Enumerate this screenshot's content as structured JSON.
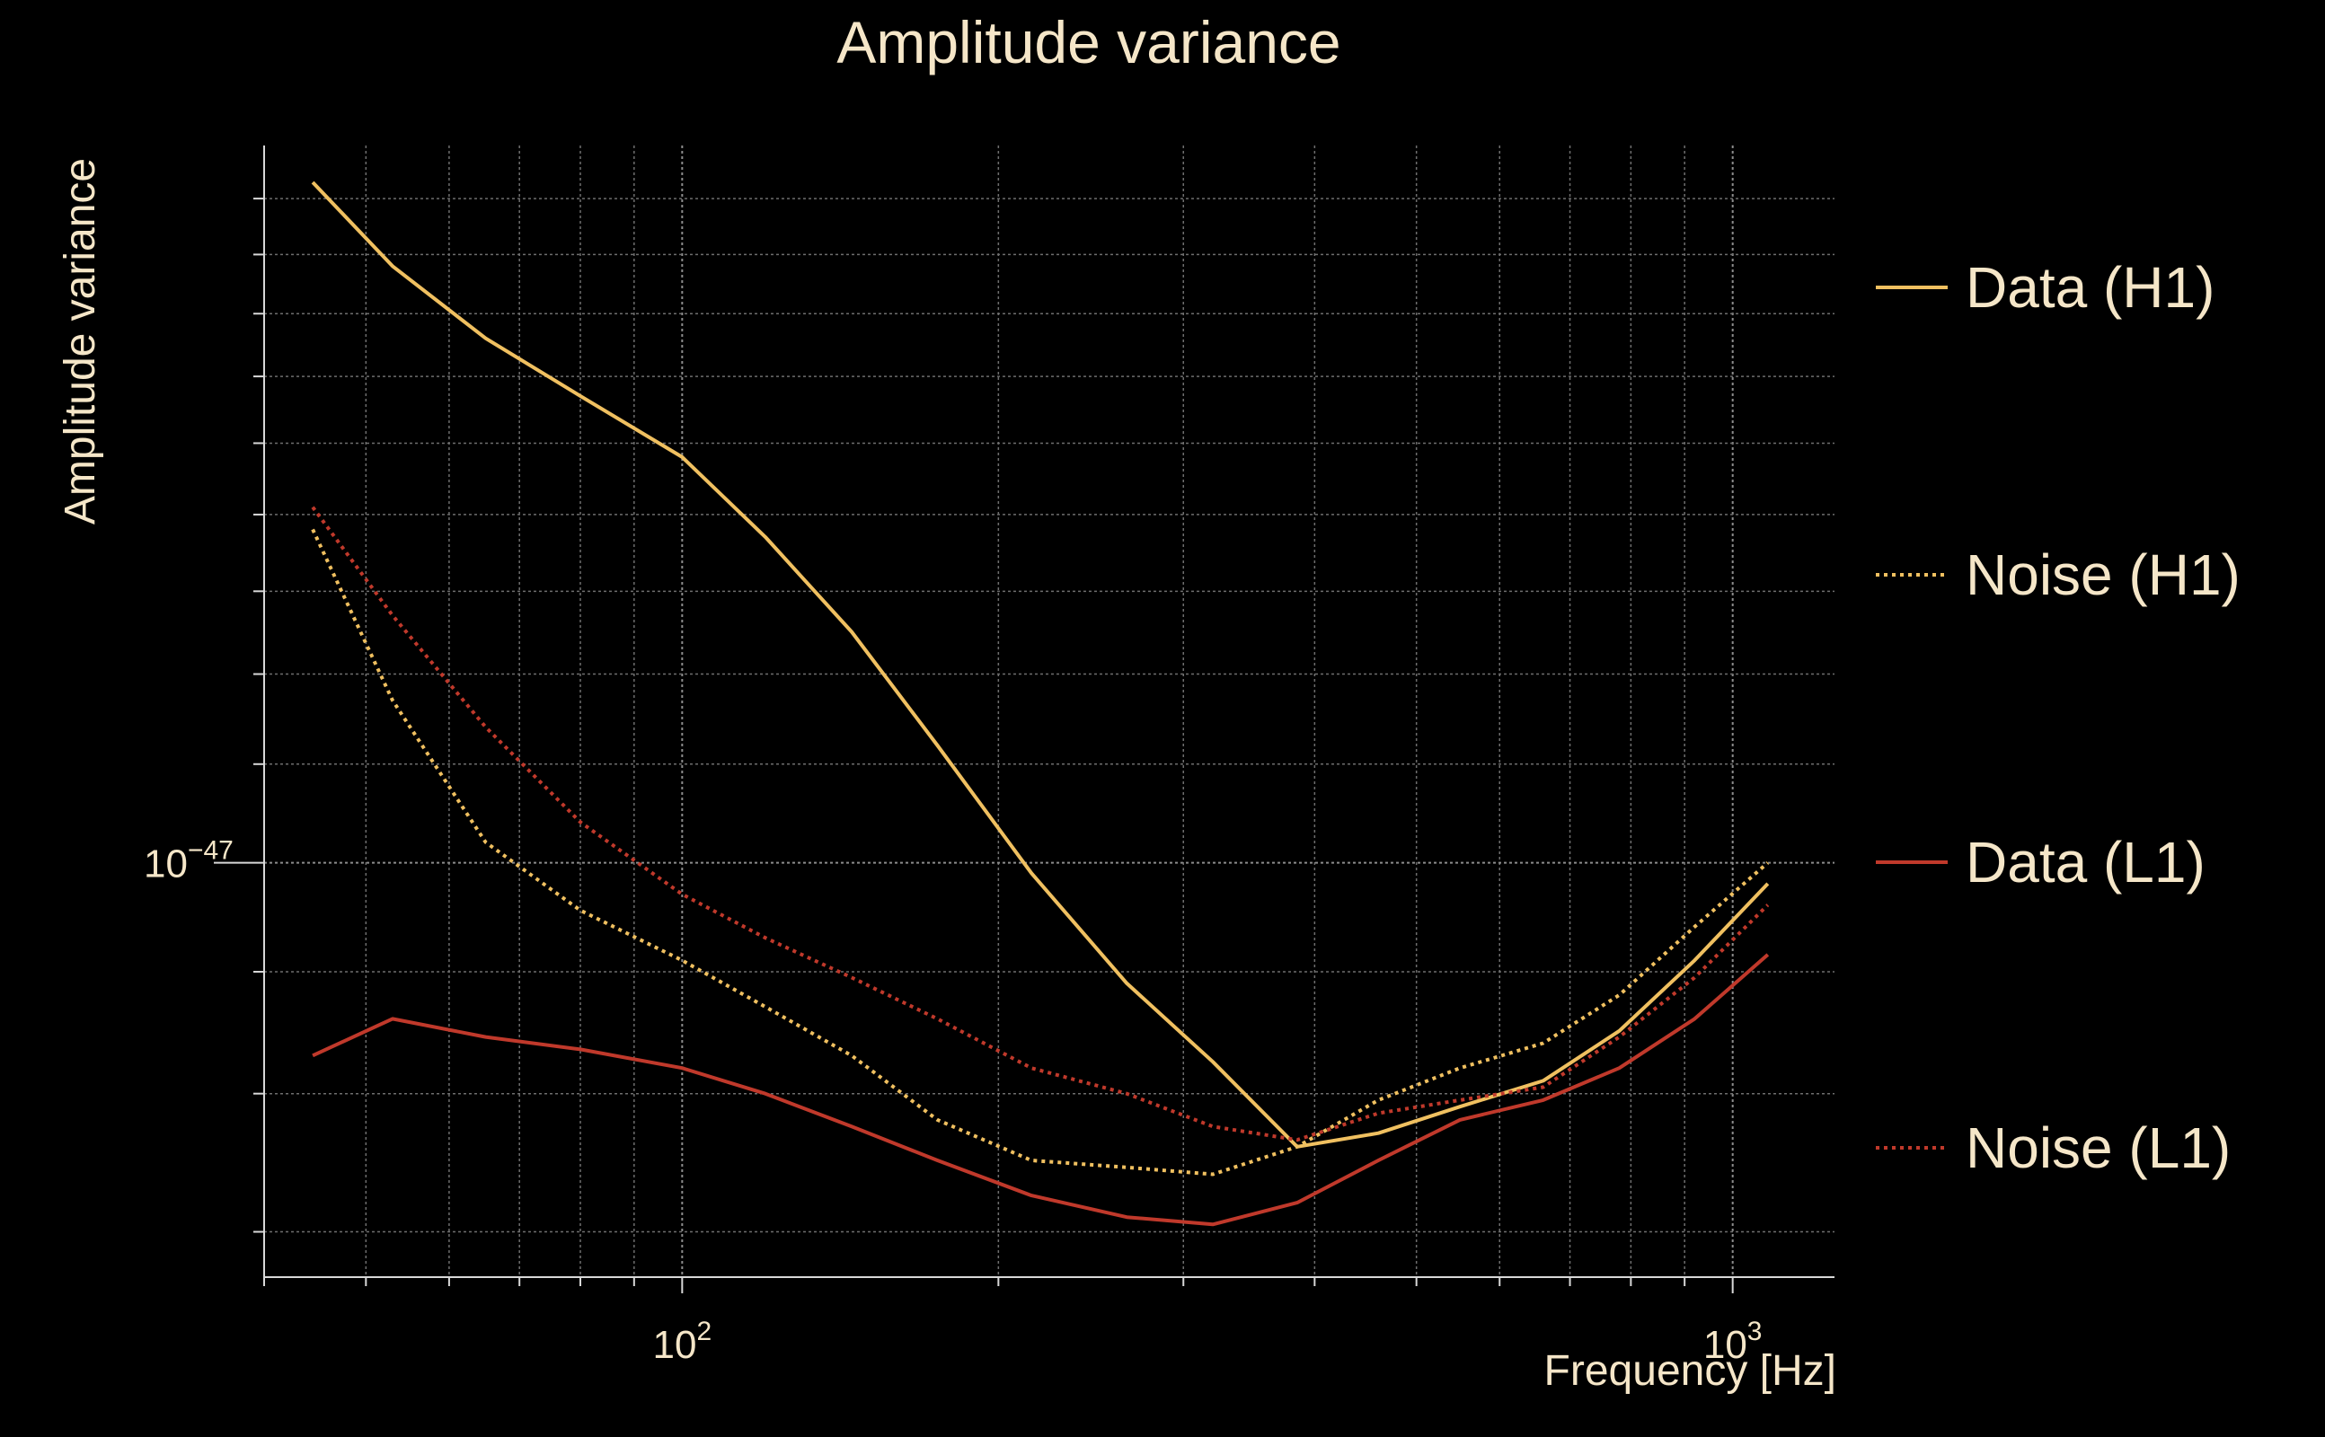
{
  "chart_data": {
    "type": "line",
    "title": "Amplitude variance",
    "xlabel": "Frequency [Hz]",
    "ylabel": "Amplitude variance",
    "xscale": "log",
    "yscale": "log",
    "xlim": [
      40,
      1250
    ],
    "ylim": [
      6.7e-48,
      2e-47
    ],
    "grid": true,
    "legend_position": "right",
    "x_tick_labels": [
      {
        "value": 100,
        "base": "10",
        "exp": "2"
      },
      {
        "value": 1000,
        "base": "10",
        "exp": "3"
      }
    ],
    "y_tick_labels": [
      {
        "value": 1e-47,
        "base": "10",
        "exp": "−47"
      }
    ],
    "x": [
      44.5,
      53,
      65,
      80,
      100,
      120,
      145,
      175,
      215,
      265,
      320,
      385,
      460,
      550,
      660,
      780,
      920,
      1080
    ],
    "series": [
      {
        "name": "Data (H1)",
        "color": "#f0c060",
        "style": "solid",
        "values": [
          1.93e-47,
          1.78e-47,
          1.66e-47,
          1.57e-47,
          1.48e-47,
          1.37e-47,
          1.25e-47,
          1.12e-47,
          9.9e-48,
          8.9e-48,
          8.25e-48,
          7.6e-48,
          7.7e-48,
          7.9e-48,
          8.1e-48,
          8.5e-48,
          9.1e-48,
          9.8e-48
        ]
      },
      {
        "name": "Noise (H1)",
        "color": "#f0c060",
        "style": "dotted",
        "values": [
          1.38e-47,
          1.17e-47,
          1.02e-47,
          9.55e-48,
          9.1e-48,
          8.7e-48,
          8.3e-48,
          7.8e-48,
          7.5e-48,
          7.45e-48,
          7.4e-48,
          7.6e-48,
          7.95e-48,
          8.2e-48,
          8.4e-48,
          8.8e-48,
          9.4e-48,
          1e-47
        ]
      },
      {
        "name": "Data (L1)",
        "color": "#c0392b",
        "style": "solid",
        "values": [
          8.3e-48,
          8.6e-48,
          8.45e-48,
          8.35e-48,
          8.2e-48,
          8e-48,
          7.75e-48,
          7.5e-48,
          7.25e-48,
          7.1e-48,
          7.05e-48,
          7.2e-48,
          7.5e-48,
          7.8e-48,
          7.95e-48,
          8.2e-48,
          8.6e-48,
          9.15e-48
        ]
      },
      {
        "name": "Noise (L1)",
        "color": "#c0392b",
        "style": "dotted",
        "values": [
          1.41e-47,
          1.27e-47,
          1.14e-47,
          1.04e-47,
          9.7e-48,
          9.3e-48,
          8.95e-48,
          8.6e-48,
          8.2e-48,
          8e-48,
          7.75e-48,
          7.65e-48,
          7.85e-48,
          7.95e-48,
          8.05e-48,
          8.45e-48,
          8.95e-48,
          9.6e-48
        ]
      }
    ]
  }
}
